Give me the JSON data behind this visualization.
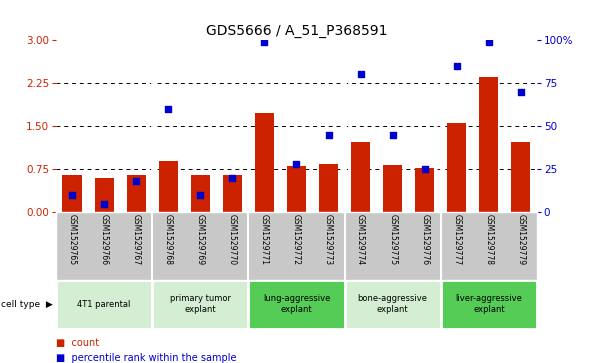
{
  "title": "GDS5666 / A_51_P368591",
  "samples": [
    "GSM1529765",
    "GSM1529766",
    "GSM1529767",
    "GSM1529768",
    "GSM1529769",
    "GSM1529770",
    "GSM1529771",
    "GSM1529772",
    "GSM1529773",
    "GSM1529774",
    "GSM1529775",
    "GSM1529776",
    "GSM1529777",
    "GSM1529778",
    "GSM1529779"
  ],
  "counts": [
    0.65,
    0.6,
    0.65,
    0.9,
    0.65,
    0.65,
    1.72,
    0.8,
    0.85,
    1.22,
    0.83,
    0.78,
    1.56,
    2.36,
    1.22
  ],
  "percentiles": [
    10,
    5,
    18,
    60,
    10,
    20,
    99,
    28,
    45,
    80,
    45,
    25,
    85,
    99,
    70
  ],
  "cell_types": [
    {
      "label": "4T1 parental",
      "start": 0,
      "end": 3,
      "color": "#d4eed4"
    },
    {
      "label": "primary tumor\nexplant",
      "start": 3,
      "end": 6,
      "color": "#d4eed4"
    },
    {
      "label": "lung-aggressive\nexplant",
      "start": 6,
      "end": 9,
      "color": "#55cc55"
    },
    {
      "label": "bone-aggressive\nexplant",
      "start": 9,
      "end": 12,
      "color": "#d4eed4"
    },
    {
      "label": "liver-aggressive\nexplant",
      "start": 12,
      "end": 15,
      "color": "#55cc55"
    }
  ],
  "group_boundaries": [
    3,
    6,
    9,
    12
  ],
  "bar_color": "#cc2200",
  "dot_color": "#0000cc",
  "left_axis_color": "#cc2200",
  "right_axis_color": "#0000cc",
  "ylim_left": [
    0,
    3
  ],
  "ylim_right": [
    0,
    100
  ],
  "yticks_left": [
    0,
    0.75,
    1.5,
    2.25,
    3
  ],
  "yticks_right": [
    0,
    25,
    50,
    75,
    100
  ],
  "bar_width": 0.6,
  "dot_size": 22,
  "legend_count_label": "count",
  "legend_pct_label": "percentile rank within the sample",
  "sample_bg_color": "#c8c8c8",
  "title_fontsize": 10
}
